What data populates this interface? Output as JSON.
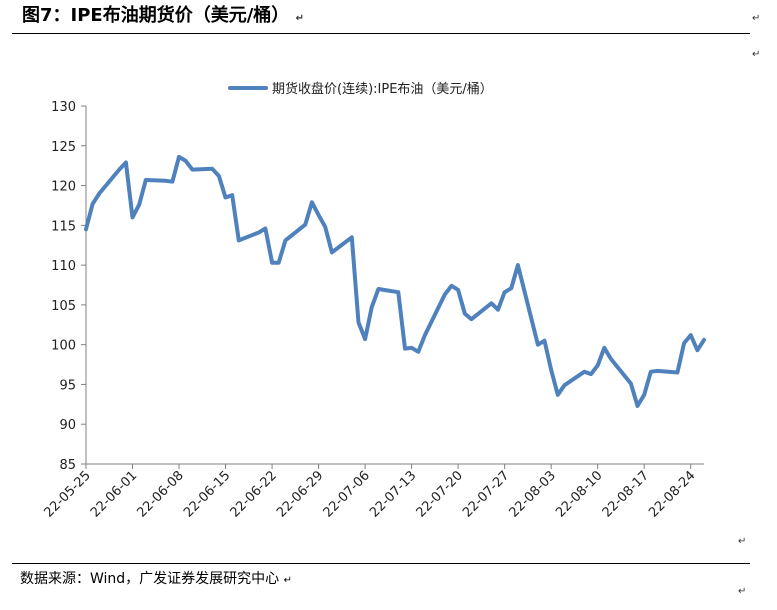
{
  "header": {
    "title": "图7：IPE布油期货价（美元/桶）",
    "return_mark": "↵"
  },
  "footer": {
    "source": "数据来源：Wind，广发证券发展研究中心"
  },
  "chart_data": {
    "type": "line",
    "title": "",
    "xlabel": "",
    "ylabel": "",
    "ylim": [
      85,
      130
    ],
    "yticks": [
      85,
      90,
      95,
      100,
      105,
      110,
      115,
      120,
      125,
      130
    ],
    "xlim": [
      "2022-05-25",
      "2022-08-26"
    ],
    "xticks": [
      "22-05-25",
      "22-06-01",
      "22-06-08",
      "22-06-15",
      "22-06-22",
      "22-06-29",
      "22-07-06",
      "22-07-13",
      "22-07-20",
      "22-07-27",
      "22-08-03",
      "22-08-10",
      "22-08-17",
      "22-08-24"
    ],
    "grid": false,
    "legend": "top-center",
    "series": [
      {
        "name": "期货收盘价(连续):IPE布油（美元/桶）",
        "color": "#4f81bd",
        "x": [
          "2022-05-25",
          "2022-05-26",
          "2022-05-27",
          "2022-05-30",
          "2022-05-31",
          "2022-06-01",
          "2022-06-02",
          "2022-06-03",
          "2022-06-06",
          "2022-06-07",
          "2022-06-08",
          "2022-06-09",
          "2022-06-10",
          "2022-06-13",
          "2022-06-14",
          "2022-06-15",
          "2022-06-16",
          "2022-06-17",
          "2022-06-20",
          "2022-06-21",
          "2022-06-22",
          "2022-06-23",
          "2022-06-24",
          "2022-06-27",
          "2022-06-28",
          "2022-06-29",
          "2022-06-30",
          "2022-07-01",
          "2022-07-04",
          "2022-07-05",
          "2022-07-06",
          "2022-07-07",
          "2022-07-08",
          "2022-07-11",
          "2022-07-12",
          "2022-07-13",
          "2022-07-14",
          "2022-07-15",
          "2022-07-18",
          "2022-07-19",
          "2022-07-20",
          "2022-07-21",
          "2022-07-22",
          "2022-07-25",
          "2022-07-26",
          "2022-07-27",
          "2022-07-28",
          "2022-07-29",
          "2022-08-01",
          "2022-08-02",
          "2022-08-03",
          "2022-08-04",
          "2022-08-05",
          "2022-08-08",
          "2022-08-09",
          "2022-08-10",
          "2022-08-11",
          "2022-08-12",
          "2022-08-15",
          "2022-08-16",
          "2022-08-17",
          "2022-08-18",
          "2022-08-19",
          "2022-08-22",
          "2022-08-23",
          "2022-08-24",
          "2022-08-25",
          "2022-08-26"
        ],
        "values": [
          114.5,
          117.7,
          119.0,
          122.0,
          122.9,
          116.0,
          117.6,
          120.7,
          120.6,
          120.5,
          123.6,
          123.1,
          122.0,
          122.1,
          121.2,
          118.5,
          118.8,
          113.1,
          114.1,
          114.6,
          110.3,
          110.3,
          113.1,
          115.1,
          117.9,
          116.3,
          114.8,
          111.6,
          113.5,
          102.8,
          100.7,
          104.7,
          107.0,
          106.6,
          99.5,
          99.6,
          99.1,
          101.2,
          106.3,
          107.4,
          106.9,
          103.9,
          103.2,
          105.2,
          104.4,
          106.6,
          107.1,
          110.0,
          100.0,
          100.5,
          96.8,
          93.7,
          94.9,
          96.6,
          96.3,
          97.4,
          99.6,
          98.2,
          95.1,
          92.3,
          93.7,
          96.6,
          96.7,
          96.5,
          100.2,
          101.2,
          99.3,
          100.6
        ]
      }
    ]
  }
}
